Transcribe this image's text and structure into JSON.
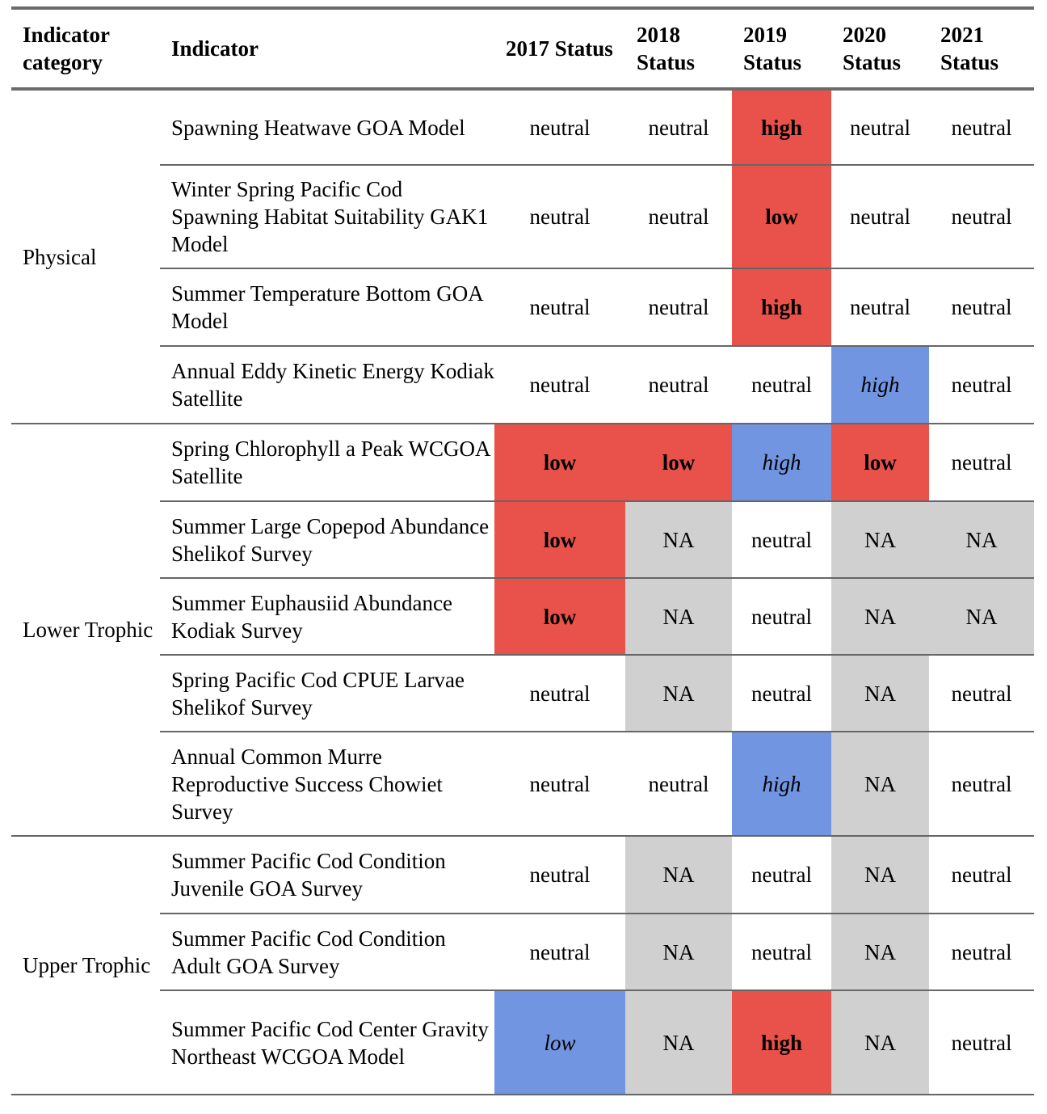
{
  "header": {
    "category": "Indicator category",
    "indicator": "Indicator",
    "years": [
      "2017 Status",
      "2018 Status",
      "2019 Status",
      "2020 Status",
      "2021 Status"
    ]
  },
  "groups": [
    {
      "category": "Physical",
      "rows": [
        {
          "indicator": "Spawning Heatwave GOA Model",
          "values": [
            "neutral",
            "neutral",
            "high",
            "neutral",
            "neutral"
          ],
          "styles": [
            "",
            "",
            "red",
            "",
            ""
          ]
        },
        {
          "indicator": "Winter Spring Pacific Cod Spawning Habitat Suitability GAK1 Model",
          "values": [
            "neutral",
            "neutral",
            "low",
            "neutral",
            "neutral"
          ],
          "styles": [
            "",
            "",
            "red",
            "",
            ""
          ]
        },
        {
          "indicator": "Summer Temperature Bottom GOA Model",
          "values": [
            "neutral",
            "neutral",
            "high",
            "neutral",
            "neutral"
          ],
          "styles": [
            "",
            "",
            "red",
            "",
            ""
          ]
        },
        {
          "indicator": "Annual Eddy Kinetic Energy Kodiak Satellite",
          "values": [
            "neutral",
            "neutral",
            "neutral",
            "high",
            "neutral"
          ],
          "styles": [
            "",
            "",
            "",
            "blue",
            ""
          ]
        }
      ]
    },
    {
      "category": "Lower Trophic",
      "rows": [
        {
          "indicator": "Spring Chlorophyll a Peak WCGOA Satellite",
          "values": [
            "low",
            "low",
            "high",
            "low",
            "neutral"
          ],
          "styles": [
            "red",
            "red",
            "blue",
            "red",
            ""
          ]
        },
        {
          "indicator": "Summer Large Copepod Abundance Shelikof Survey",
          "values": [
            "low",
            "NA",
            "neutral",
            "NA",
            "NA"
          ],
          "styles": [
            "red",
            "gray",
            "",
            "gray",
            "gray"
          ]
        },
        {
          "indicator": "Summer Euphausiid Abundance Kodiak Survey",
          "values": [
            "low",
            "NA",
            "neutral",
            "NA",
            "NA"
          ],
          "styles": [
            "red",
            "gray",
            "",
            "gray",
            "gray"
          ]
        },
        {
          "indicator": "Spring Pacific Cod CPUE Larvae Shelikof Survey",
          "values": [
            "neutral",
            "NA",
            "neutral",
            "NA",
            "neutral"
          ],
          "styles": [
            "",
            "gray",
            "",
            "gray",
            ""
          ]
        },
        {
          "indicator": "Annual Common Murre Reproductive Success Chowiet Survey",
          "values": [
            "neutral",
            "neutral",
            "high",
            "NA",
            "neutral"
          ],
          "styles": [
            "",
            "",
            "blue",
            "gray",
            ""
          ]
        }
      ]
    },
    {
      "category": "Upper Trophic",
      "rows": [
        {
          "indicator": "Summer Pacific Cod Condition Juvenile GOA Survey",
          "values": [
            "neutral",
            "NA",
            "neutral",
            "NA",
            "neutral"
          ],
          "styles": [
            "",
            "gray",
            "",
            "gray",
            ""
          ]
        },
        {
          "indicator": "Summer Pacific Cod Condition Adult GOA Survey",
          "values": [
            "neutral",
            "NA",
            "neutral",
            "NA",
            "neutral"
          ],
          "styles": [
            "",
            "gray",
            "",
            "gray",
            ""
          ]
        },
        {
          "indicator": "Summer Pacific Cod Center Gravity Northeast WCGOA Model",
          "values": [
            "low",
            "NA",
            "high",
            "NA",
            "neutral"
          ],
          "styles": [
            "blue",
            "gray",
            "red",
            "gray",
            ""
          ]
        }
      ]
    }
  ],
  "colors": {
    "red": "#e8524a",
    "blue": "#7295e2",
    "gray": "#d0d0d0",
    "rule": "#666666"
  }
}
